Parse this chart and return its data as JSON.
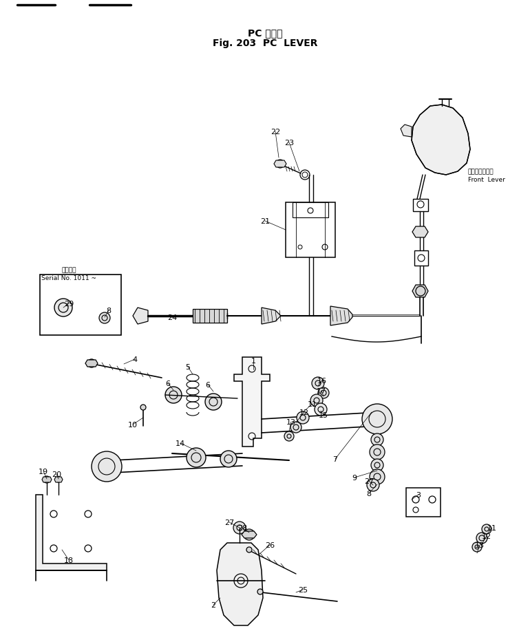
{
  "title_line1": "PC レバー",
  "title_line2": "Fig. 203  PC  LEVER",
  "background_color": "#ffffff",
  "line_color": "#000000",
  "figsize": [
    7.7,
    9.37
  ],
  "dpi": 100,
  "serial_text1": "適用号列",
  "serial_text2": "Serial No. 1011 ~",
  "front_lever_jp": "フロントレバー",
  "front_lever_en": "Front  Lever"
}
